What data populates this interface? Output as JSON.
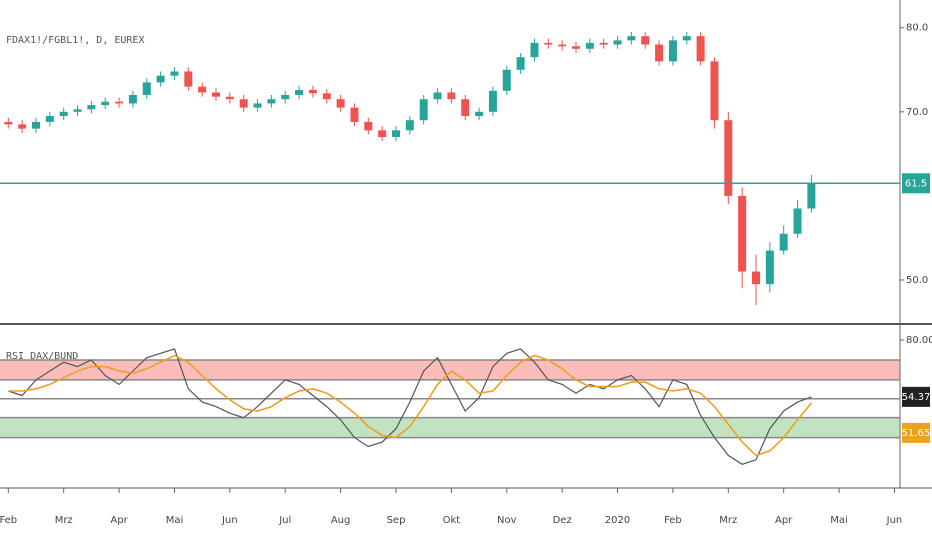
{
  "chart_data": [
    {
      "type": "candlestick",
      "title": "FDAX1!/FGBL1!, D, EUREX",
      "x": [
        0,
        0.25,
        0.5,
        0.75,
        1,
        1.25,
        1.5,
        1.75,
        2,
        2.25,
        2.5,
        2.75,
        3,
        3.25,
        3.5,
        3.75,
        4,
        4.25,
        4.5,
        4.75,
        5,
        5.25,
        5.5,
        5.75,
        6,
        6.25,
        6.5,
        6.75,
        7,
        7.25,
        7.5,
        7.75,
        8,
        8.25,
        8.5,
        8.75,
        9,
        9.25,
        9.5,
        9.75,
        10,
        10.25,
        10.5,
        10.75,
        11,
        11.25,
        11.5,
        11.75,
        12,
        12.25,
        12.5,
        12.75,
        13,
        13.25,
        13.5,
        13.75,
        14,
        14.25,
        14.5
      ],
      "open": [
        68.8,
        68.5,
        68.0,
        68.8,
        69.5,
        70.0,
        70.3,
        70.8,
        71.2,
        71.0,
        72.0,
        73.5,
        74.3,
        74.8,
        73.0,
        72.3,
        71.8,
        71.5,
        70.5,
        71.0,
        71.5,
        72.0,
        72.6,
        72.2,
        71.5,
        70.5,
        68.8,
        67.8,
        67.0,
        67.8,
        69.0,
        71.5,
        72.3,
        71.5,
        69.5,
        70.0,
        72.5,
        75.0,
        76.5,
        78.2,
        78.0,
        77.8,
        77.5,
        78.2,
        78.0,
        78.5,
        79.0,
        78.0,
        76.0,
        78.5,
        79.0,
        76.0,
        69.0,
        60.0,
        51.0,
        49.5,
        53.5,
        55.5,
        58.5
      ],
      "high": [
        69.3,
        69.0,
        69.3,
        70.0,
        70.5,
        70.8,
        71.3,
        71.7,
        71.7,
        72.5,
        74.0,
        74.8,
        75.3,
        75.3,
        73.5,
        72.8,
        72.3,
        72.0,
        71.5,
        72.0,
        72.5,
        73.1,
        73.1,
        72.7,
        72.0,
        71.0,
        69.3,
        68.3,
        68.3,
        69.5,
        72.0,
        72.8,
        72.8,
        72.0,
        70.5,
        73.0,
        75.5,
        77.0,
        78.7,
        78.7,
        78.5,
        78.3,
        78.7,
        78.7,
        79.0,
        79.5,
        79.5,
        78.5,
        79.0,
        79.5,
        79.5,
        76.5,
        70.0,
        61.0,
        53.0,
        54.5,
        56.5,
        59.5,
        62.5
      ],
      "low": [
        68.0,
        67.5,
        67.5,
        68.3,
        69.0,
        69.5,
        69.8,
        70.3,
        70.5,
        70.5,
        71.5,
        73.0,
        73.8,
        72.5,
        71.8,
        71.3,
        71.0,
        70.0,
        70.0,
        70.5,
        71.0,
        71.5,
        71.7,
        71.0,
        70.0,
        68.3,
        67.3,
        66.5,
        66.5,
        67.3,
        68.5,
        71.0,
        71.0,
        69.0,
        69.0,
        69.5,
        72.0,
        74.5,
        76.0,
        77.5,
        77.3,
        77.0,
        77.0,
        77.5,
        77.5,
        78.0,
        77.5,
        75.5,
        75.5,
        78.0,
        75.5,
        68.0,
        59.0,
        49.0,
        47.0,
        48.5,
        53.0,
        55.0,
        58.0
      ],
      "close": [
        68.5,
        68.0,
        68.8,
        69.5,
        70.0,
        70.3,
        70.8,
        71.2,
        71.0,
        72.0,
        73.5,
        74.3,
        74.8,
        73.0,
        72.3,
        71.8,
        71.5,
        70.5,
        71.0,
        71.5,
        72.0,
        72.6,
        72.2,
        71.5,
        70.5,
        68.8,
        67.8,
        67.0,
        67.8,
        69.0,
        71.5,
        72.3,
        71.5,
        69.5,
        70.0,
        72.5,
        75.0,
        76.5,
        78.2,
        78.0,
        77.8,
        77.5,
        78.2,
        78.0,
        78.5,
        79.0,
        78.0,
        76.0,
        78.5,
        79.0,
        76.0,
        69.0,
        60.0,
        51.0,
        49.5,
        53.5,
        55.5,
        58.5,
        61.5
      ],
      "up_color": "#26a69a",
      "down_color": "#ef5350",
      "last_color": "#26a69a",
      "xlim": [
        -0.15,
        16.1
      ],
      "xticks": [
        {
          "value": 0,
          "label": "Feb"
        },
        {
          "value": 1,
          "label": "Mrz"
        },
        {
          "value": 2,
          "label": "Apr"
        },
        {
          "value": 3,
          "label": "Mai"
        },
        {
          "value": 4,
          "label": "Jun"
        },
        {
          "value": 5,
          "label": "Jul"
        },
        {
          "value": 6,
          "label": "Aug"
        },
        {
          "value": 7,
          "label": "Sep"
        },
        {
          "value": 8,
          "label": "Okt"
        },
        {
          "value": 9,
          "label": "Nov"
        },
        {
          "value": 10,
          "label": "Dez"
        },
        {
          "value": 11,
          "label": "2020"
        },
        {
          "value": 12,
          "label": "Feb"
        },
        {
          "value": 13,
          "label": "Mrz"
        },
        {
          "value": 14,
          "label": "Apr"
        },
        {
          "value": 15,
          "label": "Mai"
        },
        {
          "value": 16,
          "label": "Jun"
        }
      ],
      "ylim": [
        45.0,
        83.3
      ],
      "yticks": [
        {
          "value": 80,
          "label": "80.0"
        },
        {
          "value": 70,
          "label": "70.0"
        },
        {
          "value": 50,
          "label": "50.0"
        }
      ]
    },
    {
      "type": "line",
      "title": "RSI DAX/BUND",
      "x": [
        0,
        0.25,
        0.5,
        0.75,
        1,
        1.25,
        1.5,
        1.75,
        2,
        2.25,
        2.5,
        2.75,
        3,
        3.25,
        3.5,
        3.75,
        4,
        4.25,
        4.5,
        4.75,
        5,
        5.25,
        5.5,
        5.75,
        6,
        6.25,
        6.5,
        6.75,
        7,
        7.25,
        7.5,
        7.75,
        8,
        8.25,
        8.5,
        8.75,
        9,
        9.25,
        9.5,
        9.75,
        10,
        10.25,
        10.5,
        10.75,
        11,
        11.25,
        11.5,
        11.75,
        12,
        12.25,
        12.5,
        12.75,
        13,
        13.25,
        13.5,
        13.75,
        14,
        14.25,
        14.5
      ],
      "series": [
        {
          "color": "#555555",
          "values": [
            57,
            55,
            62,
            66,
            70,
            68,
            71,
            64,
            60,
            66,
            72,
            74,
            76,
            58,
            52,
            50,
            47,
            45,
            50,
            56,
            62,
            60,
            55,
            50,
            44,
            36,
            32,
            34,
            40,
            52,
            66,
            72,
            60,
            48,
            54,
            68,
            74,
            76,
            70,
            62,
            60,
            56,
            60,
            58,
            62,
            64,
            58,
            50,
            62,
            60,
            46,
            36,
            28,
            24,
            26,
            40,
            48,
            52,
            54.37
          ]
        },
        {
          "color": "#f0a020",
          "values": [
            57,
            57,
            58,
            60,
            63,
            66,
            68,
            68,
            66,
            65,
            67,
            70,
            73,
            70,
            64,
            58,
            53,
            49,
            48,
            50,
            54,
            57,
            58,
            56,
            52,
            47,
            41,
            37,
            36,
            41,
            50,
            60,
            66,
            62,
            56,
            57,
            64,
            70,
            73,
            71,
            67,
            62,
            59,
            59,
            59,
            61,
            61,
            58,
            57,
            58,
            56,
            50,
            42,
            34,
            28,
            30,
            36,
            44,
            51.65
          ]
        }
      ],
      "bands": [
        {
          "range": [
            62,
            71
          ],
          "color": "rgba(244,67,54,0.35)"
        },
        {
          "range": [
            36,
            45
          ],
          "color": "rgba(76,175,80,0.35)"
        }
      ],
      "levels": [
        71,
        62,
        53.5,
        45,
        36
      ],
      "xlim": [
        -0.15,
        16.1
      ],
      "ylim": [
        13.3,
        86.3
      ],
      "yticks": [
        {
          "value": 80,
          "label": "80.00"
        }
      ]
    }
  ]
}
